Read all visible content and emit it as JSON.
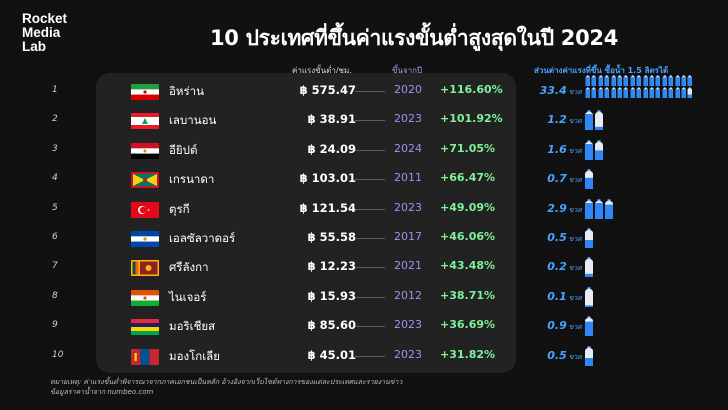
{
  "brand": {
    "line1": "Rocket",
    "line2": "Media",
    "line3": "Lab"
  },
  "title": "10 ประเทศที่ขึ้นค่าแรงขั้นต่ำสูงสุดในปี 2024",
  "headers": {
    "wage": "ค่าแรงขั้นต่ำ/ชม.",
    "year": "ขึ้นจากปี",
    "bottles": "ส่วนต่างค่าแรงที่ขึ้น ซื้อน้ำ 1.5 ลิตรได้"
  },
  "colors": {
    "accent_green": "#7ef29a",
    "accent_purple": "#b594f5",
    "accent_blue": "#4aa3ff",
    "background": "#111111",
    "panel": "#222222"
  },
  "rows": [
    {
      "rank": "1",
      "country": "อิหร่าน",
      "flag": "iran-flag",
      "wage": "฿ 575.47",
      "year": "2020",
      "pct": "+116.60%",
      "bottles": "33.4",
      "unit": "ขวด",
      "fill": 33.4
    },
    {
      "rank": "2",
      "country": "เลบานอน",
      "flag": "lebanon-flag",
      "wage": "฿ 38.91",
      "year": "2023",
      "pct": "+101.92%",
      "bottles": "1.2",
      "unit": "ขวด",
      "fill": 1.2
    },
    {
      "rank": "3",
      "country": "อียิปต์",
      "flag": "egypt-flag",
      "wage": "฿ 24.09",
      "year": "2024",
      "pct": "+71.05%",
      "bottles": "1.6",
      "unit": "ขวด",
      "fill": 1.6
    },
    {
      "rank": "4",
      "country": "เกรนาดา",
      "flag": "grenada-flag",
      "wage": "฿ 103.01",
      "year": "2011",
      "pct": "+66.47%",
      "bottles": "0.7",
      "unit": "ขวด",
      "fill": 0.7
    },
    {
      "rank": "5",
      "country": "ตุรกี",
      "flag": "turkey-flag",
      "wage": "฿ 121.54",
      "year": "2023",
      "pct": "+49.09%",
      "bottles": "2.9",
      "unit": "ขวด",
      "fill": 2.9
    },
    {
      "rank": "6",
      "country": "เอลซัลวาดอร์",
      "flag": "el-salvador-flag",
      "wage": "฿ 55.58",
      "year": "2017",
      "pct": "+46.06%",
      "bottles": "0.5",
      "unit": "ขวด",
      "fill": 0.5
    },
    {
      "rank": "7",
      "country": "ศรีลังกา",
      "flag": "sri-lanka-flag",
      "wage": "฿ 12.23",
      "year": "2021",
      "pct": "+43.48%",
      "bottles": "0.2",
      "unit": "ขวด",
      "fill": 0.2
    },
    {
      "rank": "8",
      "country": "ไนเจอร์",
      "flag": "niger-flag",
      "wage": "฿ 15.93",
      "year": "2012",
      "pct": "+38.71%",
      "bottles": "0.1",
      "unit": "ขวด",
      "fill": 0.1
    },
    {
      "rank": "9",
      "country": "มอริเชียส",
      "flag": "mauritius-flag",
      "wage": "฿ 85.60",
      "year": "2023",
      "pct": "+36.69%",
      "bottles": "0.9",
      "unit": "ขวด",
      "fill": 0.9
    },
    {
      "rank": "10",
      "country": "มองโกเลีย",
      "flag": "mongolia-flag",
      "wage": "฿ 45.01",
      "year": "2023",
      "pct": "+31.82%",
      "bottles": "0.5",
      "unit": "ขวด",
      "fill": 0.5
    }
  ],
  "footnote": {
    "line1": "หมายเหตุ: ค่าแรงขั้นต่ำพิจารณาจากภาคเอกชนเป็นหลัก อ้างอิงจากเว็บไซต์ทางการของแต่ละประเทศและรายงานข่าว",
    "line2": "ข้อมูลราคาน้ำจาก numbeo.com"
  }
}
